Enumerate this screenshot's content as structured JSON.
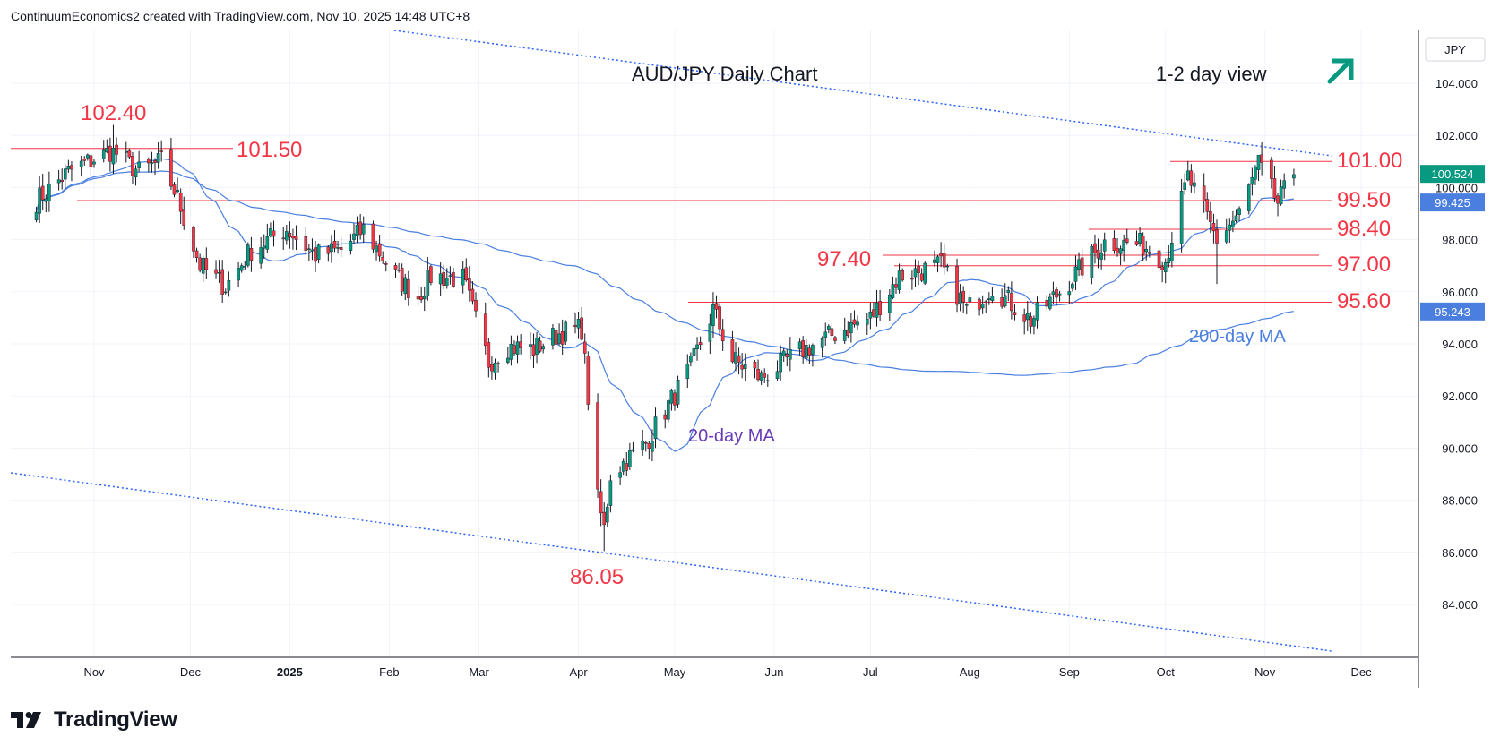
{
  "header": {
    "attribution": "ContinuumEconomics2 created with TradingView.com, Nov 10, 2025 14:48 UTC+8"
  },
  "footer": {
    "brand": "TradingView"
  },
  "colors": {
    "up": "#089981",
    "down": "#f23645",
    "ma20": "#4a7fe0",
    "ma200": "#4a7fe0",
    "level": "#f23645",
    "trend": "#2962ff",
    "arrow": "#089981"
  },
  "chart_data": {
    "type": "candlestick",
    "title": "AUD/JPY Daily Chart",
    "subtitle": "1-2 day view",
    "currency": "JPY",
    "y_ticks": [
      "104.000",
      "102.000",
      "100.000",
      "98.000",
      "96.000",
      "94.000",
      "92.000",
      "90.000",
      "88.000",
      "86.000",
      "84.000"
    ],
    "x_ticks": [
      "Nov",
      "Dec",
      "2025",
      "Feb",
      "Mar",
      "Apr",
      "May",
      "Jun",
      "Jul",
      "Aug",
      "Sep",
      "Oct",
      "Nov",
      "Dec"
    ],
    "ylim": [
      82.1,
      106.0
    ],
    "last_price": {
      "value": 100.524,
      "label": "100.524"
    },
    "ma20_last": {
      "value": 99.425,
      "label": "99.425"
    },
    "ma200_last": {
      "value": 95.243,
      "label": "95.243"
    },
    "levels": [
      {
        "value": 101.5,
        "label": "101.50"
      },
      {
        "value": 101.0,
        "label": "101.00"
      },
      {
        "value": 99.5,
        "label": "99.50"
      },
      {
        "value": 98.4,
        "label": "98.40"
      },
      {
        "value": 97.4,
        "label": "97.40"
      },
      {
        "value": 97.0,
        "label": "97.00"
      },
      {
        "value": 95.6,
        "label": "95.60"
      }
    ],
    "extremes": [
      {
        "label": "102.40",
        "value": 102.4
      },
      {
        "label": "86.05",
        "value": 86.05
      }
    ],
    "ma_labels": {
      "ma20": "20-day MA",
      "ma200": "200-day MA"
    },
    "trend_direction": "up",
    "series": [
      {
        "name": "AUD/JPY",
        "anchors": [
          [
            "2024-10-14",
            99.5
          ],
          [
            "2024-10-24",
            100.6
          ],
          [
            "2024-11-06",
            101.4
          ],
          [
            "2024-11-08",
            101.3
          ],
          [
            "2024-11-15",
            100.6
          ],
          [
            "2024-11-22",
            101.0
          ],
          [
            "2024-11-27",
            99.6
          ],
          [
            "2024-12-04",
            97.0
          ],
          [
            "2024-12-12",
            96.2
          ],
          [
            "2024-12-20",
            97.6
          ],
          [
            "2024-12-31",
            98.4
          ],
          [
            "2025-01-09",
            97.4
          ],
          [
            "2025-01-17",
            97.6
          ],
          [
            "2025-01-24",
            98.4
          ],
          [
            "2025-02-03",
            96.6
          ],
          [
            "2025-02-10",
            95.8
          ],
          [
            "2025-02-14",
            96.6
          ],
          [
            "2025-02-24",
            96.5
          ],
          [
            "2025-03-04",
            93.3
          ],
          [
            "2025-03-10",
            93.9
          ],
          [
            "2025-03-18",
            93.8
          ],
          [
            "2025-03-26",
            94.4
          ],
          [
            "2025-04-02",
            94.6
          ],
          [
            "2025-04-07",
            88.0
          ],
          [
            "2025-04-09",
            86.9
          ],
          [
            "2025-04-11",
            89.0
          ],
          [
            "2025-04-22",
            90.2
          ],
          [
            "2025-05-06",
            93.1
          ],
          [
            "2025-05-13",
            95.3
          ],
          [
            "2025-05-19",
            93.4
          ],
          [
            "2025-05-28",
            92.7
          ],
          [
            "2025-06-09",
            93.7
          ],
          [
            "2025-06-20",
            94.4
          ],
          [
            "2025-07-01",
            95.0
          ],
          [
            "2025-07-10",
            96.6
          ],
          [
            "2025-07-23",
            97.0
          ],
          [
            "2025-07-31",
            95.3
          ],
          [
            "2025-08-08",
            96.2
          ],
          [
            "2025-08-20",
            94.9
          ],
          [
            "2025-08-29",
            96.0
          ],
          [
            "2025-09-12",
            97.9
          ],
          [
            "2025-09-24",
            97.8
          ],
          [
            "2025-10-01",
            97.2
          ],
          [
            "2025-10-08",
            100.4
          ],
          [
            "2025-10-14",
            98.8
          ],
          [
            "2025-10-17",
            98.0
          ],
          [
            "2025-10-24",
            99.0
          ],
          [
            "2025-10-30",
            100.9
          ],
          [
            "2025-11-05",
            99.4
          ],
          [
            "2025-11-10",
            100.5
          ]
        ]
      }
    ]
  }
}
